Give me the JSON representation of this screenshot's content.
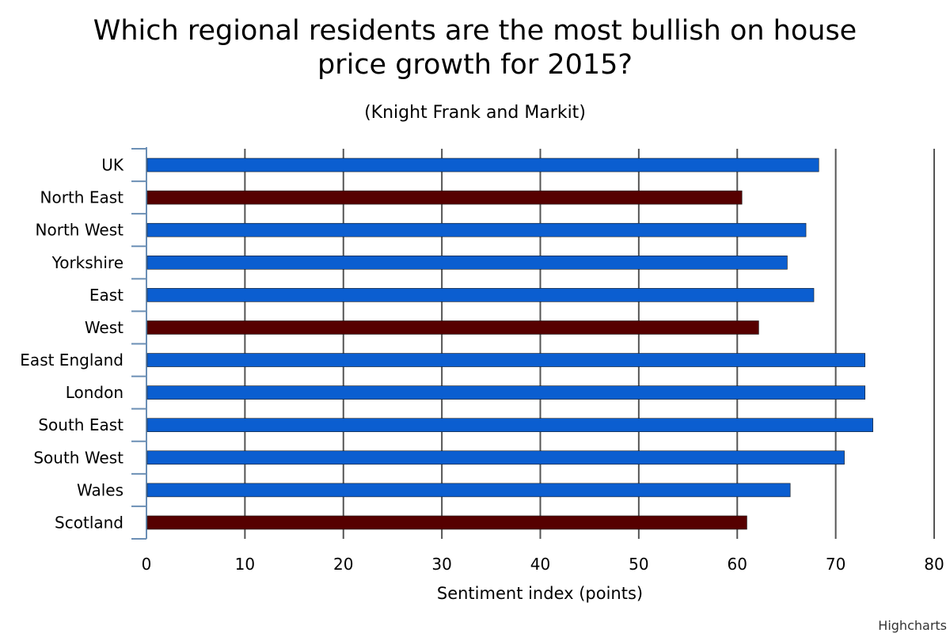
{
  "chart_data": {
    "type": "bar",
    "orientation": "horizontal",
    "title": "Which regional residents are the most bullish on house price growth for 2015?",
    "subtitle": "(Knight Frank and Markit)",
    "xlabel": "Sentiment index (points)",
    "xlim": [
      0,
      80
    ],
    "ticks": [
      0,
      10,
      20,
      30,
      40,
      50,
      60,
      70,
      80
    ],
    "grid": true,
    "categories": [
      "UK",
      "North East",
      "North West",
      "Yorkshire",
      "East",
      "West",
      "East England",
      "London",
      "South East",
      "South West",
      "Wales",
      "Scotland"
    ],
    "values": [
      68.2,
      60.4,
      66.9,
      65.0,
      67.7,
      62.1,
      72.9,
      72.9,
      73.7,
      70.8,
      65.3,
      60.9
    ],
    "bar_colors": [
      "#0b5ed0",
      "#560000",
      "#0b5ed0",
      "#0b5ed0",
      "#0b5ed0",
      "#560000",
      "#0b5ed0",
      "#0b5ed0",
      "#0b5ed0",
      "#0b5ed0",
      "#0b5ed0",
      "#560000"
    ]
  },
  "credits": "Highcharts"
}
